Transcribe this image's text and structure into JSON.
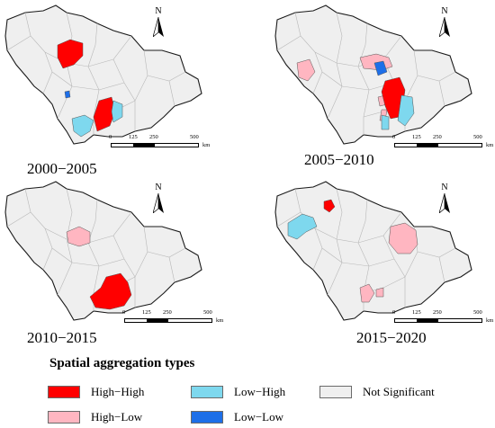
{
  "panels": [
    {
      "period": "2000−2005",
      "north": "N",
      "scale_labels": [
        "0",
        "125",
        "250",
        "500"
      ],
      "scale_unit": "km"
    },
    {
      "period": "2005−2010",
      "north": "N",
      "scale_labels": [
        "0",
        "125",
        "250",
        "500"
      ],
      "scale_unit": "km"
    },
    {
      "period": "2010−2015",
      "north": "N",
      "scale_labels": [
        "0",
        "125",
        "250",
        "500"
      ],
      "scale_unit": "km"
    },
    {
      "period": "2015−2020",
      "north": "N",
      "scale_labels": [
        "0",
        "125",
        "250",
        "500"
      ],
      "scale_unit": "km"
    }
  ],
  "legend": {
    "title": "Spatial aggregation types",
    "items": [
      {
        "label": "High−High",
        "color": "#ff0000"
      },
      {
        "label": "Low−High",
        "color": "#7ed8ee"
      },
      {
        "label": "Not Significant",
        "color": "#efefef"
      },
      {
        "label": "High−Low",
        "color": "#ffb6c1"
      },
      {
        "label": "Low−Low",
        "color": "#1e6fe8"
      }
    ]
  },
  "colors": {
    "high_high": "#ff0000",
    "low_high": "#7ed8ee",
    "high_low": "#ffb6c1",
    "low_low": "#1e6fe8",
    "not_significant": "#efefef"
  }
}
